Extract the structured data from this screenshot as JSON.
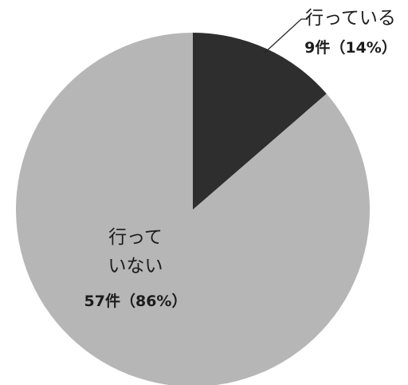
{
  "chart_data": {
    "type": "pie",
    "slices": [
      {
        "label_lines": [
          "行っている"
        ],
        "count_label": "9件（14%）",
        "value": 9,
        "percent": 14,
        "color": "#2e2e2e"
      },
      {
        "label_lines": [
          "行って",
          "いない"
        ],
        "count_label": "57件（86%）",
        "value": 57,
        "percent": 86,
        "color": "#b6b6b6"
      }
    ],
    "start_angle_deg": 0,
    "direction": "clockwise",
    "legend": "none",
    "title": ""
  }
}
